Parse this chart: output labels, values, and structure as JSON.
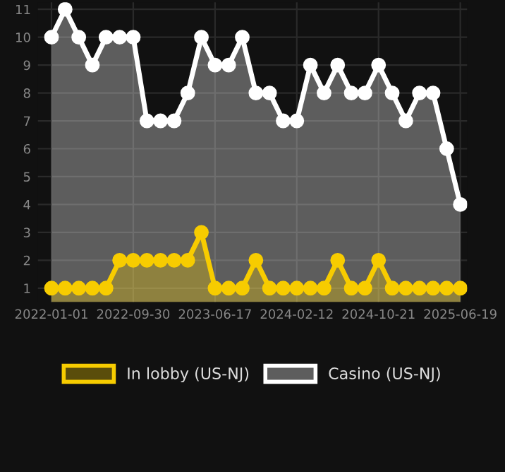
{
  "chart_data": {
    "type": "area",
    "categories": [
      "2022-01-01",
      null,
      null,
      null,
      null,
      null,
      "2022-09-30",
      null,
      null,
      null,
      null,
      null,
      "2023-06-17",
      null,
      null,
      null,
      null,
      null,
      "2024-02-12",
      null,
      null,
      null,
      null,
      null,
      "2024-10-21",
      null,
      null,
      null,
      null,
      null,
      "2025-06-19"
    ],
    "series": [
      {
        "name": "Casino (US-NJ)",
        "color": "#ffffff",
        "values": [
          10,
          11,
          10,
          9,
          10,
          10,
          10,
          7,
          7,
          7,
          8,
          10,
          9,
          9,
          10,
          8,
          8,
          7,
          7,
          9,
          8,
          9,
          8,
          8,
          9,
          8,
          7,
          8,
          8,
          6,
          4
        ]
      },
      {
        "name": "In lobby (US-NJ)",
        "color": "#f7cc00",
        "values": [
          1,
          1,
          1,
          1,
          1,
          2,
          2,
          2,
          2,
          2,
          2,
          3,
          1,
          1,
          1,
          2,
          1,
          1,
          1,
          1,
          1,
          2,
          1,
          1,
          2,
          1,
          1,
          1,
          1,
          1,
          1
        ]
      }
    ],
    "ylim": [
      0.5,
      11.25
    ],
    "yticks": [
      1,
      2,
      3,
      4,
      5,
      6,
      7,
      8,
      9,
      10,
      11
    ],
    "grid": true,
    "marker": "circle",
    "legend": "bottom"
  }
}
